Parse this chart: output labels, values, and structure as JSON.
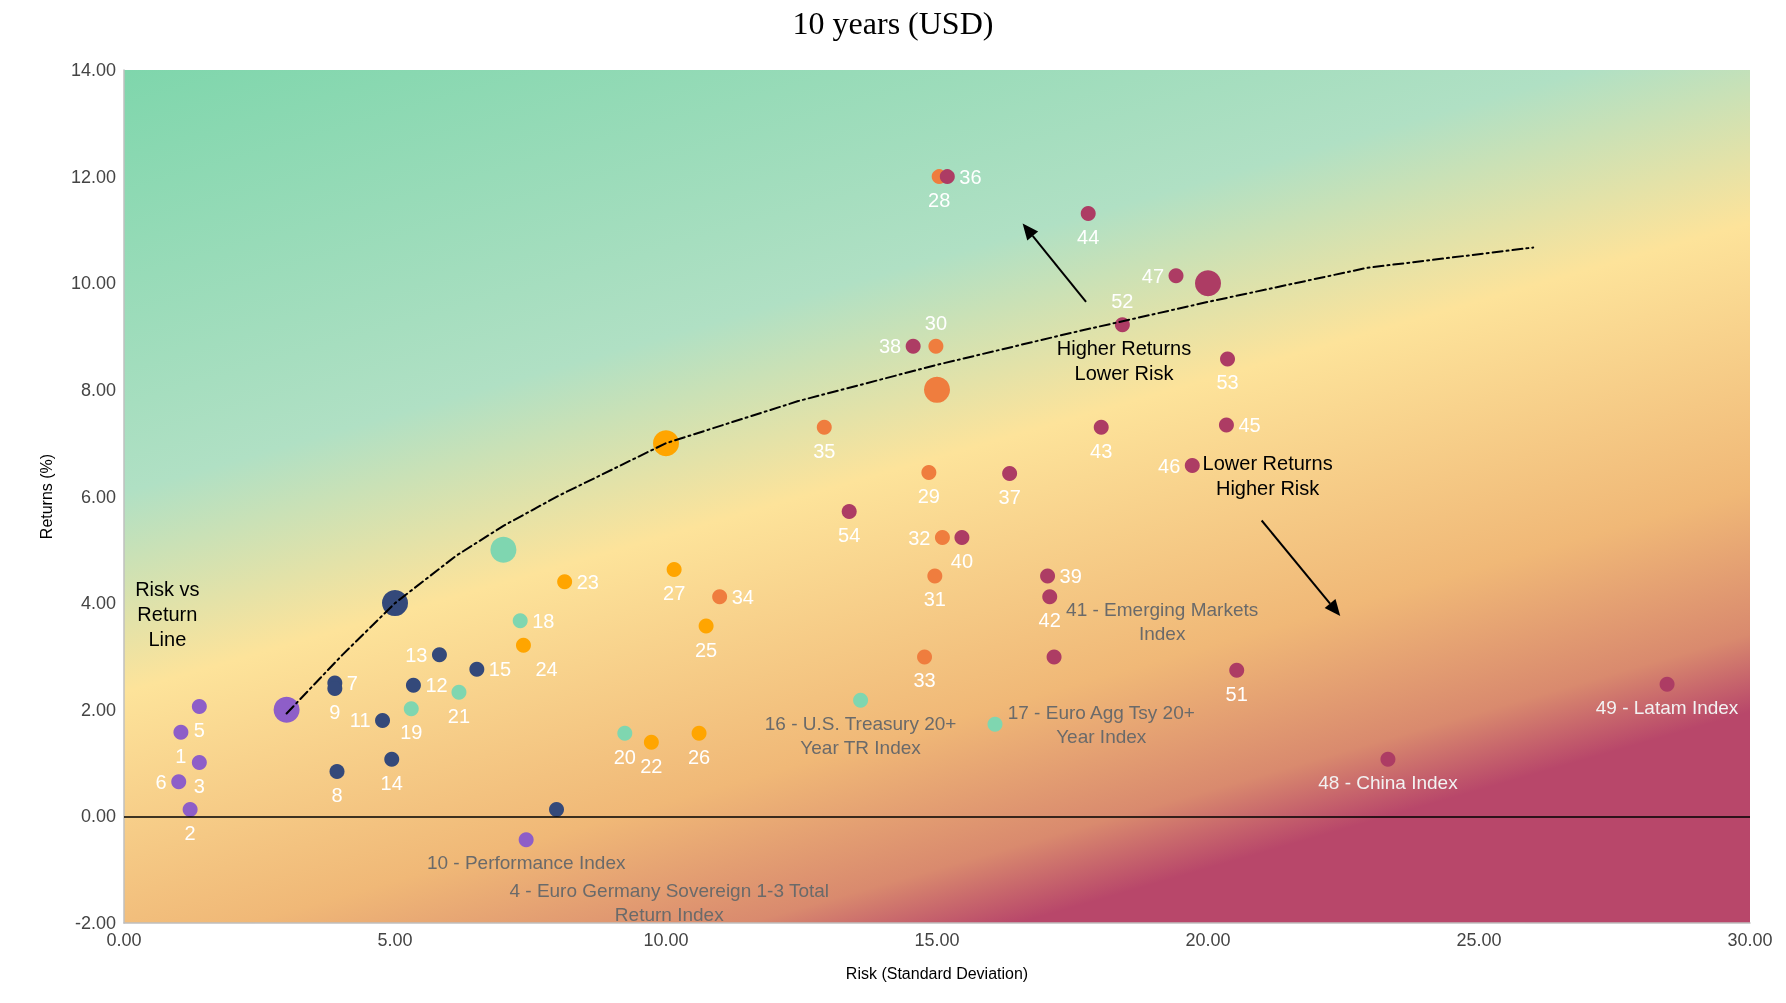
{
  "chart_data": {
    "type": "scatter",
    "title": "10 years (USD)",
    "xlabel": "Risk (Standard Deviation)",
    "ylabel": "Returns (%)",
    "xlim": [
      0,
      30
    ],
    "xticks": [
      {
        "value": 0,
        "label": "0.00"
      },
      {
        "value": 5,
        "label": "5.00"
      },
      {
        "value": 10,
        "label": "10.00"
      },
      {
        "value": 15,
        "label": "15.00"
      },
      {
        "value": 20,
        "label": "20.00"
      },
      {
        "value": 25,
        "label": "25.00"
      },
      {
        "value": 30,
        "label": "30.00"
      }
    ],
    "ylim": [
      -2,
      14
    ],
    "yticks": [
      {
        "value": -2,
        "label": "-2.00"
      },
      {
        "value": 0,
        "label": "0.00"
      },
      {
        "value": 2,
        "label": "2.00"
      },
      {
        "value": 4,
        "label": "4.00"
      },
      {
        "value": 6,
        "label": "6.00"
      },
      {
        "value": 8,
        "label": "8.00"
      },
      {
        "value": 10,
        "label": "10.00"
      },
      {
        "value": 12,
        "label": "12.00"
      },
      {
        "value": 14,
        "label": "14.00"
      }
    ],
    "grid": false,
    "marker": "circle",
    "ref_lines": [
      {
        "axis": "y",
        "value": 0,
        "color": "#000000"
      }
    ],
    "series": [
      {
        "color": "#8e5ec8",
        "x": [
          1.05,
          1.22,
          1.39,
          1.39,
          1.01,
          7.42
        ],
        "values": [
          1.58,
          0.13,
          1.01,
          2.06,
          0.65,
          -0.44
        ]
      },
      {
        "color": "#34497a",
        "x": [
          3.89,
          3.93,
          3.89,
          4.77,
          5.34,
          5.82,
          4.94,
          6.51,
          7.98
        ],
        "values": [
          2.5,
          0.84,
          2.4,
          1.8,
          2.46,
          3.03,
          1.07,
          2.76,
          0.13
        ]
      },
      {
        "color": "#7fd6b0",
        "x": [
          13.59,
          16.07,
          7.31,
          5.3,
          9.24,
          6.18
        ],
        "values": [
          2.18,
          1.73,
          3.67,
          2.02,
          1.56,
          2.33
        ]
      },
      {
        "color": "#ffa500",
        "x": [
          9.73,
          8.13,
          7.37,
          10.74,
          10.61,
          10.15
        ],
        "values": [
          1.39,
          4.4,
          3.21,
          3.57,
          1.56,
          4.63
        ]
      },
      {
        "color": "#ef7d3e",
        "x": [
          15.04,
          14.85,
          14.98,
          14.96,
          15.1,
          14.77,
          10.99,
          12.92
        ],
        "values": [
          12.0,
          6.45,
          8.82,
          4.51,
          5.23,
          2.99,
          4.12,
          7.3
        ]
      },
      {
        "color": "#ad3c64",
        "x": [
          15.19,
          16.34,
          14.56,
          17.04,
          15.46,
          17.16,
          17.08,
          18.03,
          17.79,
          20.34,
          19.71,
          19.41,
          23.32,
          28.47,
          20.53,
          18.42,
          20.36,
          13.38
        ],
        "values": [
          12.0,
          6.43,
          8.82,
          4.51,
          5.23,
          2.99,
          4.12,
          7.3,
          11.31,
          7.34,
          6.58,
          10.14,
          1.07,
          2.48,
          2.74,
          9.22,
          8.58,
          5.72
        ]
      },
      {
        "type": "bubble",
        "x": [
          3,
          5,
          7,
          10,
          15,
          20
        ],
        "values": [
          2,
          4,
          5,
          7,
          8,
          10
        ],
        "sizes": [
          1,
          1,
          1,
          1,
          1,
          1
        ],
        "colors": [
          "#8e5ec8",
          "#34497a",
          "#7fd6b0",
          "#ffa500",
          "#ef7d3e",
          "#ad3c64"
        ]
      },
      {
        "type": "line",
        "color": "#000000",
        "marker": "none",
        "line_style": "dashed",
        "x": [
          3,
          4.03,
          5,
          6.13,
          7,
          8.03,
          10,
          12.44,
          15,
          17.48,
          20,
          22.94,
          26
        ],
        "values": [
          1.93,
          3.03,
          4,
          4.89,
          5.45,
          6.02,
          7,
          7.79,
          8.47,
          9.07,
          9.65,
          10.29,
          10.67
        ]
      }
    ],
    "annotations": [
      "Risk vs Return Line",
      "Higher Returns Lower Risk",
      "Lower Returns Higher Risk",
      "4 - Euro Germany Sovereign 1-3 Total Return Index",
      {
        "text": "10 - Performance Index",
        "x": 7.42,
        "y": -0.44
      },
      {
        "text": "16 - U.S. Treasury 20+ Year TR Index",
        "x": 13.59,
        "y": 2.18
      },
      {
        "text": "17 - Euro Agg Tsy 20+ Year Index",
        "x": 16.07,
        "y": 1.73
      },
      {
        "text": "41 - Emerging Markets Index",
        "x": 17.16,
        "y": 2.99
      },
      {
        "text": "48 - China Index",
        "x": 23.32,
        "y": 1.07
      },
      {
        "text": "49 - Latam Index",
        "x": 28.47,
        "y": 2.48
      },
      {
        "text": "1",
        "x": 1.05,
        "y": 1.58
      },
      {
        "text": "2",
        "x": 1.22,
        "y": 0.13
      },
      {
        "text": "3",
        "x": 1.39,
        "y": 1.01
      },
      {
        "text": "5",
        "x": 1.39,
        "y": 2.06
      },
      {
        "text": "6",
        "x": 1.01,
        "y": 0.65
      },
      {
        "text": "7",
        "x": 3.89,
        "y": 2.5
      },
      {
        "text": "8",
        "x": 3.93,
        "y": 0.84
      },
      {
        "text": "9",
        "x": 3.89,
        "y": 2.4
      },
      {
        "text": "11",
        "x": 4.77,
        "y": 1.8
      },
      {
        "text": "12",
        "x": 5.34,
        "y": 2.46
      },
      {
        "text": "13",
        "x": 5.82,
        "y": 3.03
      },
      {
        "text": "14",
        "x": 4.94,
        "y": 1.07
      },
      {
        "text": "15",
        "x": 6.51,
        "y": 2.76
      },
      {
        "text": "18",
        "x": 7.31,
        "y": 3.67
      },
      {
        "text": "19",
        "x": 5.3,
        "y": 2.02
      },
      {
        "text": "20",
        "x": 9.24,
        "y": 1.56
      },
      {
        "text": "21",
        "x": 6.18,
        "y": 2.33
      },
      {
        "text": "22",
        "x": 9.73,
        "y": 1.39
      },
      {
        "text": "23",
        "x": 8.13,
        "y": 4.4
      },
      {
        "text": "24",
        "x": 7.37,
        "y": 3.21
      },
      {
        "text": "25",
        "x": 10.74,
        "y": 3.57
      },
      {
        "text": "26",
        "x": 10.61,
        "y": 1.56
      },
      {
        "text": "27",
        "x": 10.15,
        "y": 4.63
      },
      {
        "text": "28",
        "x": 15.04,
        "y": 12.0
      },
      {
        "text": "29",
        "x": 14.85,
        "y": 6.45
      },
      {
        "text": "30",
        "x": 14.98,
        "y": 8.82
      },
      {
        "text": "31",
        "x": 14.96,
        "y": 4.51
      },
      {
        "text": "32",
        "x": 15.1,
        "y": 5.23
      },
      {
        "text": "33",
        "x": 14.77,
        "y": 2.99
      },
      {
        "text": "34",
        "x": 10.99,
        "y": 4.12
      },
      {
        "text": "35",
        "x": 12.92,
        "y": 7.3
      },
      {
        "text": "36",
        "x": 15.19,
        "y": 12.0
      },
      {
        "text": "37",
        "x": 16.34,
        "y": 6.43
      },
      {
        "text": "38",
        "x": 14.56,
        "y": 8.82
      },
      {
        "text": "39",
        "x": 17.04,
        "y": 4.51
      },
      {
        "text": "40",
        "x": 15.46,
        "y": 5.23
      },
      {
        "text": "42",
        "x": 17.08,
        "y": 4.12
      },
      {
        "text": "43",
        "x": 18.03,
        "y": 7.3
      },
      {
        "text": "44",
        "x": 17.79,
        "y": 11.31
      },
      {
        "text": "45",
        "x": 20.34,
        "y": 7.34
      },
      {
        "text": "46",
        "x": 19.71,
        "y": 6.58
      },
      {
        "text": "47",
        "x": 19.41,
        "y": 10.14
      },
      {
        "text": "51",
        "x": 20.53,
        "y": 2.74
      },
      {
        "text": "52",
        "x": 18.42,
        "y": 9.22
      },
      {
        "text": "53",
        "x": 20.36,
        "y": 8.58
      },
      {
        "text": "54",
        "x": 13.38,
        "y": 5.72
      }
    ]
  }
}
